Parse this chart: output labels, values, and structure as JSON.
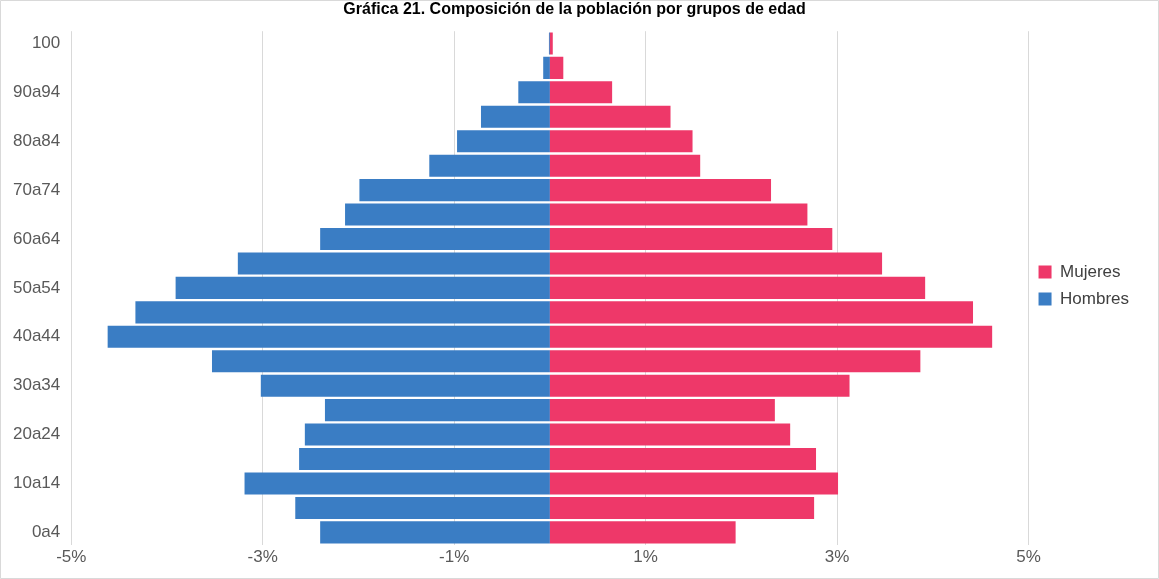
{
  "chart_data": {
    "type": "bar",
    "title": "Gráfica 21. Composición de la población por grupos de edad",
    "orientation": "horizontal",
    "stacked": true,
    "categories": [
      "100",
      null,
      "90a94",
      null,
      "80a84",
      null,
      "70a74",
      null,
      "60a64",
      null,
      "50a54",
      null,
      "40a44",
      null,
      "30a34",
      null,
      "20a24",
      null,
      "10a14",
      null,
      "0a4"
    ],
    "series": [
      {
        "name": "Mujeres",
        "color": "#ee3869",
        "values": [
          0.03,
          0.14,
          0.65,
          1.26,
          1.49,
          1.57,
          2.31,
          2.69,
          2.95,
          3.47,
          3.92,
          4.42,
          4.62,
          3.87,
          3.13,
          2.35,
          2.51,
          2.78,
          3.01,
          2.76,
          1.94
        ]
      },
      {
        "name": "Hombres",
        "color": "#3a7dc4",
        "values": [
          -0.01,
          -0.07,
          -0.33,
          -0.72,
          -0.97,
          -1.26,
          -1.99,
          -2.14,
          -2.4,
          -3.26,
          -3.91,
          -4.33,
          -4.62,
          -3.53,
          -3.02,
          -2.35,
          -2.56,
          -2.62,
          -3.19,
          -2.66,
          -2.4
        ]
      }
    ],
    "xlim": [
      -5,
      5
    ],
    "xticks": [
      {
        "value": -5,
        "label": "-5%"
      },
      {
        "value": -3,
        "label": "-3%"
      },
      {
        "value": -1,
        "label": "-1%"
      },
      {
        "value": 1,
        "label": "1%"
      },
      {
        "value": 3,
        "label": "3%"
      },
      {
        "value": 5,
        "label": "5%"
      }
    ],
    "grid": "x",
    "legend": "right"
  }
}
